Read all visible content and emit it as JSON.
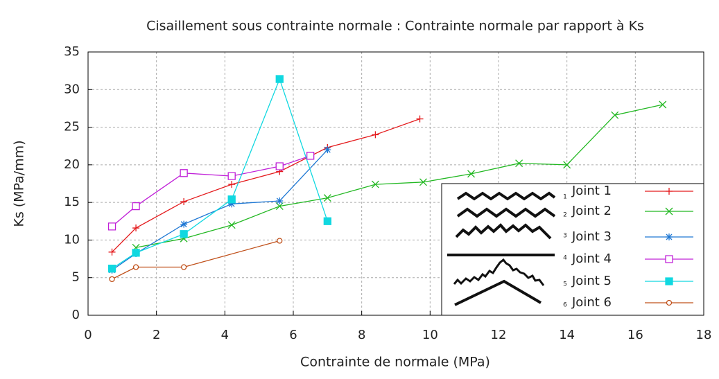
{
  "chart_data": {
    "type": "line",
    "title": "Cisaillement sous contrainte normale : Contrainte normale par rapport à Ks",
    "x_label": "Contrainte de normale (MPa)",
    "y_label": "Ks (MPa/mm)",
    "xlim": [
      0,
      18
    ],
    "xticks": [
      0,
      2,
      4,
      6,
      8,
      10,
      12,
      14,
      16,
      18
    ],
    "ylim": [
      0,
      35
    ],
    "yticks": [
      0,
      5,
      10,
      15,
      20,
      25,
      30,
      35
    ],
    "grid": true,
    "legend": "lower right",
    "legend_profile_labels": [
      "1",
      "2",
      "3",
      "4",
      "5",
      "6"
    ],
    "series": [
      {
        "name": "Joint 1",
        "color": "#e41a1c",
        "marker": "plus",
        "x": [
          0.7,
          1.4,
          2.8,
          4.2,
          5.6,
          7,
          8.4,
          9.7
        ],
        "values": [
          8.4,
          11.6,
          15.1,
          17.4,
          19.1,
          22.3,
          24,
          26.1
        ]
      },
      {
        "name": "Joint 2",
        "color": "#22b822",
        "marker": "cross",
        "x": [
          1.4,
          2.8,
          4.2,
          5.6,
          7,
          8.4,
          9.8,
          11.2,
          12.6,
          14,
          15.4,
          16.8
        ],
        "values": [
          9,
          10.2,
          12,
          14.5,
          15.6,
          17.4,
          17.7,
          18.8,
          20.2,
          20,
          26.6,
          28
        ]
      },
      {
        "name": "Joint 3",
        "color": "#1f78d4",
        "marker": "star",
        "x": [
          0.7,
          1.4,
          2.8,
          4.2,
          5.6,
          7
        ],
        "values": [
          6,
          8.2,
          12.1,
          14.8,
          15.2,
          22
        ]
      },
      {
        "name": "Joint 4",
        "color": "#c020d8",
        "marker": "square",
        "x": [
          0.7,
          1.4,
          2.8,
          4.2,
          5.6,
          6.5
        ],
        "values": [
          11.8,
          14.5,
          18.9,
          18.5,
          19.8,
          21.2
        ]
      },
      {
        "name": "Joint 5",
        "color": "#10d8e0",
        "marker": "filled-square",
        "x": [
          0.7,
          1.4,
          2.8,
          4.2,
          5.6,
          7
        ],
        "values": [
          6.2,
          8.3,
          10.8,
          15.4,
          31.4,
          12.5
        ]
      },
      {
        "name": "Joint 6",
        "color": "#c0501a",
        "marker": "circle",
        "x": [
          0.7,
          1.4,
          2.8,
          5.6
        ],
        "values": [
          4.8,
          6.4,
          6.4,
          9.9
        ]
      }
    ]
  }
}
